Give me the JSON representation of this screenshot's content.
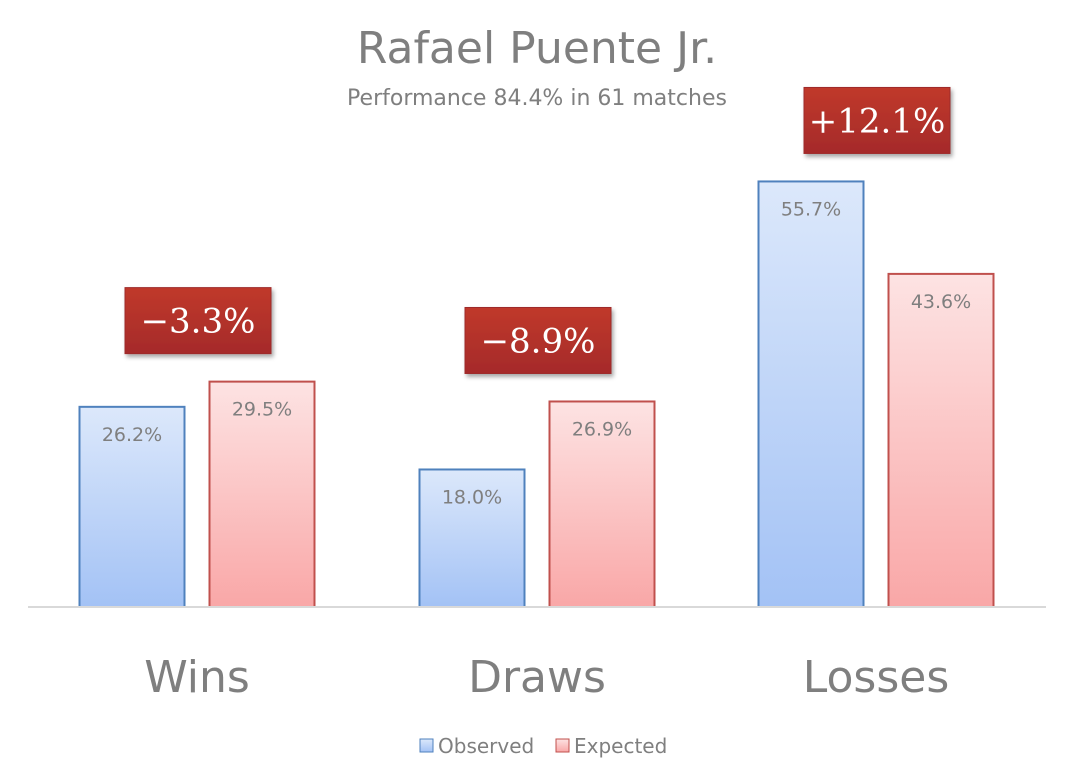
{
  "chart_data": {
    "type": "bar",
    "title": "Rafael Puente Jr.",
    "subtitle": "Performance 84.4% in 61 matches",
    "categories": [
      "Wins",
      "Draws",
      "Losses"
    ],
    "series": [
      {
        "name": "Observed",
        "values": [
          26.2,
          18.0,
          55.7
        ],
        "labels": [
          "26.2%",
          "18.0%",
          "55.7%"
        ]
      },
      {
        "name": "Expected",
        "values": [
          29.5,
          26.9,
          43.6
        ],
        "labels": [
          "29.5%",
          "26.9%",
          "43.6%"
        ]
      }
    ],
    "differences": [
      "−3.3%",
      "−8.9%",
      "+12.1%"
    ],
    "ylim": [
      0,
      60
    ],
    "grid": false,
    "legend_position": "bottom",
    "colors": {
      "observed_fill_top": "#dce8fb",
      "observed_fill_bottom": "#a3c2f5",
      "observed_stroke": "#4f81bd",
      "expected_fill_top": "#fde3e3",
      "expected_fill_bottom": "#f9a7a7",
      "expected_stroke": "#c0504d",
      "delta_box": "#c0392b",
      "delta_box_dark": "#a52a2a"
    }
  }
}
